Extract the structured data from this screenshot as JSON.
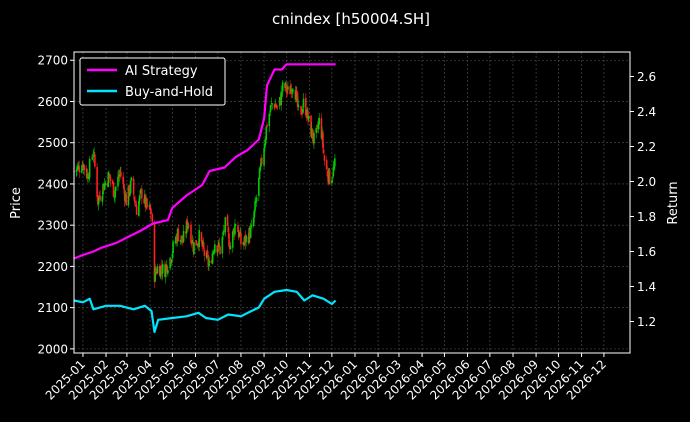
{
  "chart_data": {
    "type": "line",
    "title": "cnindex [h50004.SH]",
    "xlabel": "",
    "ylabel": "Price",
    "y2label": "Return",
    "x_ticks": [
      "2025-01",
      "2025-02",
      "2025-03",
      "2025-04",
      "2025-05",
      "2025-06",
      "2025-07",
      "2025-08",
      "2025-09",
      "2025-10",
      "2025-11",
      "2025-12",
      "2026-01",
      "2026-02",
      "2026-03",
      "2026-04",
      "2026-05",
      "2026-06",
      "2026-07",
      "2026-08",
      "2026-09",
      "2026-10",
      "2026-11",
      "2026-12"
    ],
    "x_range": [
      "2024-12-20",
      "2027-01-05"
    ],
    "ylim": [
      1990,
      2720
    ],
    "y_ticks": [
      2000,
      2100,
      2200,
      2300,
      2400,
      2500,
      2600,
      2700
    ],
    "y2lim": [
      1.02,
      2.74
    ],
    "y2_ticks": [
      1.2,
      1.4,
      1.6,
      1.8,
      2.0,
      2.2,
      2.4,
      2.6
    ],
    "grid": true,
    "legend_position": "top-left",
    "price_series": {
      "type": "candlestick",
      "up_color": "#00cc00",
      "down_color": "#ff2020",
      "closes": [
        [
          "2024-12-20",
          2430
        ],
        [
          "2025-01-01",
          2450
        ],
        [
          "2025-01-07",
          2420
        ],
        [
          "2025-01-15",
          2480
        ],
        [
          "2025-01-21",
          2360
        ],
        [
          "2025-01-27",
          2390
        ],
        [
          "2025-02-05",
          2420
        ],
        [
          "2025-02-12",
          2380
        ],
        [
          "2025-02-20",
          2430
        ],
        [
          "2025-02-28",
          2360
        ],
        [
          "2025-03-07",
          2400
        ],
        [
          "2025-03-14",
          2340
        ],
        [
          "2025-03-21",
          2380
        ],
        [
          "2025-03-28",
          2340
        ],
        [
          "2025-04-03",
          2330
        ],
        [
          "2025-04-07",
          2180
        ],
        [
          "2025-04-12",
          2200
        ],
        [
          "2025-04-20",
          2190
        ],
        [
          "2025-04-28",
          2220
        ],
        [
          "2025-05-08",
          2280
        ],
        [
          "2025-05-15",
          2260
        ],
        [
          "2025-05-22",
          2310
        ],
        [
          "2025-05-29",
          2250
        ],
        [
          "2025-06-06",
          2270
        ],
        [
          "2025-06-13",
          2230
        ],
        [
          "2025-06-20",
          2200
        ],
        [
          "2025-06-27",
          2260
        ],
        [
          "2025-07-04",
          2240
        ],
        [
          "2025-07-11",
          2300
        ],
        [
          "2025-07-18",
          2250
        ],
        [
          "2025-07-25",
          2310
        ],
        [
          "2025-08-02",
          2250
        ],
        [
          "2025-08-09",
          2270
        ],
        [
          "2025-08-16",
          2290
        ],
        [
          "2025-08-23",
          2380
        ],
        [
          "2025-08-30",
          2470
        ],
        [
          "2025-09-06",
          2560
        ],
        [
          "2025-09-13",
          2600
        ],
        [
          "2025-09-20",
          2580
        ],
        [
          "2025-09-27",
          2640
        ],
        [
          "2025-10-04",
          2620
        ],
        [
          "2025-10-11",
          2650
        ],
        [
          "2025-10-18",
          2560
        ],
        [
          "2025-10-25",
          2600
        ],
        [
          "2025-11-01",
          2540
        ],
        [
          "2025-11-08",
          2500
        ],
        [
          "2025-11-15",
          2560
        ],
        [
          "2025-11-22",
          2440
        ],
        [
          "2025-11-29",
          2410
        ],
        [
          "2025-12-06",
          2450
        ]
      ]
    },
    "series": [
      {
        "name": "AI Strategy",
        "axis": "right",
        "color": "#ff00ff",
        "points": [
          [
            "2024-12-20",
            1.56
          ],
          [
            "2025-01-01",
            1.58
          ],
          [
            "2025-01-15",
            1.6
          ],
          [
            "2025-01-25",
            1.62
          ],
          [
            "2025-02-15",
            1.65
          ],
          [
            "2025-03-01",
            1.68
          ],
          [
            "2025-03-20",
            1.72
          ],
          [
            "2025-04-05",
            1.76
          ],
          [
            "2025-04-25",
            1.78
          ],
          [
            "2025-05-01",
            1.85
          ],
          [
            "2025-05-20",
            1.92
          ],
          [
            "2025-06-10",
            1.98
          ],
          [
            "2025-06-20",
            2.06
          ],
          [
            "2025-07-10",
            2.08
          ],
          [
            "2025-07-25",
            2.14
          ],
          [
            "2025-08-10",
            2.18
          ],
          [
            "2025-08-25",
            2.24
          ],
          [
            "2025-09-01",
            2.36
          ],
          [
            "2025-09-05",
            2.55
          ],
          [
            "2025-09-15",
            2.64
          ],
          [
            "2025-09-25",
            2.64
          ],
          [
            "2025-10-01",
            2.67
          ],
          [
            "2025-12-06",
            2.67
          ]
        ]
      },
      {
        "name": "Buy-and-Hold",
        "axis": "right",
        "color": "#00e5ff",
        "points": [
          [
            "2024-12-20",
            1.32
          ],
          [
            "2025-01-01",
            1.31
          ],
          [
            "2025-01-10",
            1.33
          ],
          [
            "2025-01-15",
            1.27
          ],
          [
            "2025-02-01",
            1.29
          ],
          [
            "2025-02-20",
            1.29
          ],
          [
            "2025-03-10",
            1.27
          ],
          [
            "2025-03-25",
            1.29
          ],
          [
            "2025-04-03",
            1.26
          ],
          [
            "2025-04-07",
            1.14
          ],
          [
            "2025-04-12",
            1.21
          ],
          [
            "2025-05-01",
            1.22
          ],
          [
            "2025-05-20",
            1.23
          ],
          [
            "2025-06-05",
            1.25
          ],
          [
            "2025-06-15",
            1.22
          ],
          [
            "2025-07-01",
            1.21
          ],
          [
            "2025-07-15",
            1.24
          ],
          [
            "2025-08-01",
            1.23
          ],
          [
            "2025-08-15",
            1.26
          ],
          [
            "2025-08-25",
            1.28
          ],
          [
            "2025-09-01",
            1.33
          ],
          [
            "2025-09-15",
            1.37
          ],
          [
            "2025-10-01",
            1.38
          ],
          [
            "2025-10-15",
            1.37
          ],
          [
            "2025-10-25",
            1.32
          ],
          [
            "2025-11-05",
            1.35
          ],
          [
            "2025-11-20",
            1.33
          ],
          [
            "2025-12-01",
            1.3
          ],
          [
            "2025-12-06",
            1.32
          ]
        ]
      }
    ]
  }
}
